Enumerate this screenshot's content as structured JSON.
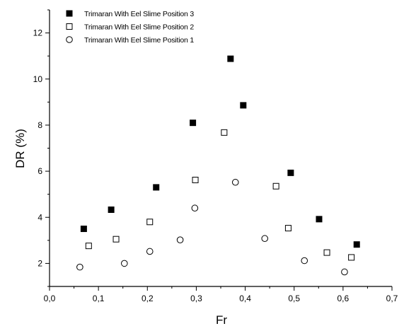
{
  "chart_data": {
    "type": "scatter",
    "title": "",
    "xlabel": "Fr",
    "ylabel": "DR (%)",
    "xlim": [
      0.0,
      0.7
    ],
    "ylim": [
      1.0,
      13.0
    ],
    "xticks": [
      "0,0",
      "0,1",
      "0,2",
      "0,3",
      "0,4",
      "0,5",
      "0,6",
      "0,7"
    ],
    "yticks": [
      "2",
      "4",
      "6",
      "8",
      "10",
      "12"
    ],
    "grid": false,
    "legend_position": "top-left",
    "series": [
      {
        "name": "Trimaran With Eel Slime Position 3",
        "marker": "filled-square",
        "color": "#000000",
        "points": [
          {
            "x": 0.07,
            "y": 3.5
          },
          {
            "x": 0.126,
            "y": 4.33
          },
          {
            "x": 0.218,
            "y": 5.3
          },
          {
            "x": 0.293,
            "y": 8.1
          },
          {
            "x": 0.37,
            "y": 10.88
          },
          {
            "x": 0.396,
            "y": 8.86
          },
          {
            "x": 0.493,
            "y": 5.93
          },
          {
            "x": 0.551,
            "y": 3.92
          },
          {
            "x": 0.628,
            "y": 2.82
          }
        ]
      },
      {
        "name": "Trimaran With Eel Slime Position 2",
        "marker": "open-square",
        "color": "#000000",
        "points": [
          {
            "x": 0.08,
            "y": 2.76
          },
          {
            "x": 0.136,
            "y": 3.05
          },
          {
            "x": 0.205,
            "y": 3.8
          },
          {
            "x": 0.298,
            "y": 5.62
          },
          {
            "x": 0.357,
            "y": 7.68
          },
          {
            "x": 0.463,
            "y": 5.35
          },
          {
            "x": 0.488,
            "y": 3.53
          },
          {
            "x": 0.567,
            "y": 2.47
          },
          {
            "x": 0.617,
            "y": 2.26
          }
        ]
      },
      {
        "name": "Trimaran With Eel Slime Position 1",
        "marker": "open-circle",
        "color": "#000000",
        "points": [
          {
            "x": 0.062,
            "y": 1.84
          },
          {
            "x": 0.153,
            "y": 2.0
          },
          {
            "x": 0.205,
            "y": 2.52
          },
          {
            "x": 0.267,
            "y": 3.02
          },
          {
            "x": 0.297,
            "y": 4.4
          },
          {
            "x": 0.38,
            "y": 5.52
          },
          {
            "x": 0.44,
            "y": 3.08
          },
          {
            "x": 0.521,
            "y": 2.12
          },
          {
            "x": 0.603,
            "y": 1.63
          }
        ]
      }
    ]
  }
}
